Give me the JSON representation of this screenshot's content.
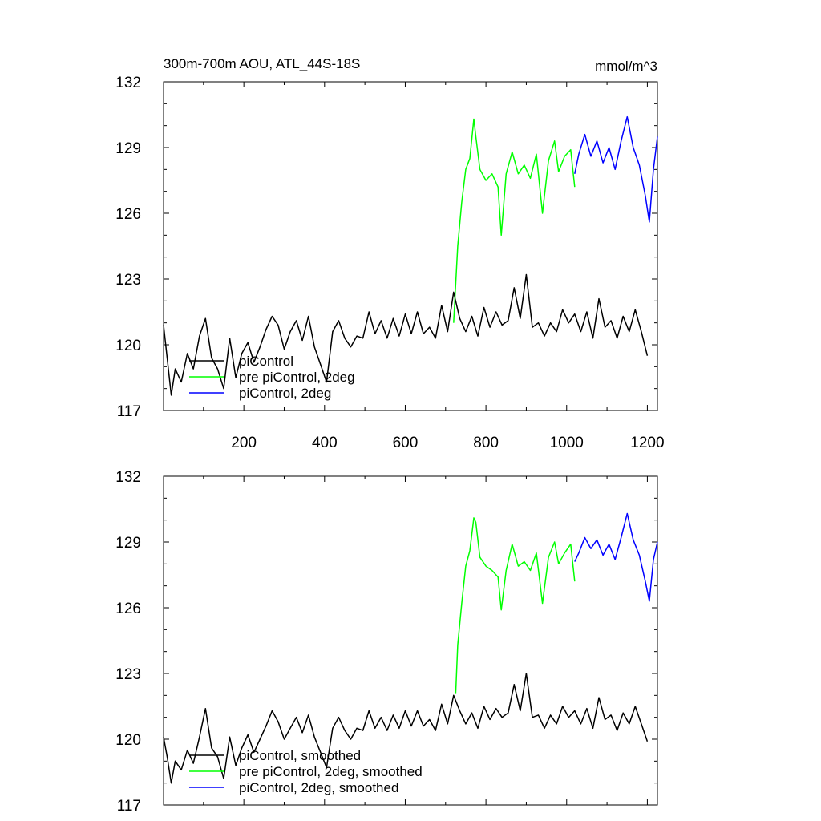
{
  "figure": {
    "title": "300m-700m AOU, ATL_44S-18S",
    "units": "mmol/m^3"
  },
  "chart_data": [
    {
      "type": "line",
      "title": "300m-700m AOU, ATL_44S-18S",
      "units": "mmol/m^3",
      "xlim": [
        1,
        1225
      ],
      "ylim": [
        117,
        132
      ],
      "xticks": [
        200,
        400,
        600,
        800,
        1000,
        1200
      ],
      "yticks": [
        117,
        120,
        123,
        126,
        129,
        132
      ],
      "legend_position": "lower-left",
      "series": [
        {
          "name": "piControl",
          "color": "#000000",
          "x": [
            1,
            10,
            20,
            30,
            45,
            60,
            75,
            90,
            105,
            120,
            135,
            150,
            165,
            180,
            195,
            210,
            225,
            240,
            255,
            270,
            285,
            300,
            315,
            330,
            345,
            360,
            375,
            390,
            405,
            420,
            435,
            450,
            465,
            480,
            495,
            510,
            525,
            540,
            555,
            570,
            585,
            600,
            615,
            630,
            645,
            660,
            675,
            690,
            705,
            720,
            735,
            750,
            765,
            780,
            795,
            810,
            825,
            840,
            855,
            870,
            885,
            900,
            915,
            930,
            945,
            960,
            975,
            990,
            1005,
            1020,
            1035,
            1050,
            1065,
            1080,
            1095,
            1110,
            1125,
            1140,
            1155,
            1170,
            1185,
            1200
          ],
          "values": [
            120.9,
            119.4,
            117.7,
            118.9,
            118.3,
            119.6,
            118.9,
            120.4,
            121.2,
            119.4,
            118.9,
            118.0,
            120.3,
            118.5,
            119.6,
            120.1,
            119.2,
            119.9,
            120.7,
            121.3,
            120.9,
            119.8,
            120.6,
            121.1,
            120.2,
            121.3,
            119.9,
            119.1,
            118.3,
            120.6,
            121.1,
            120.3,
            119.9,
            120.4,
            120.3,
            121.5,
            120.5,
            121.1,
            120.3,
            121.2,
            120.4,
            121.4,
            120.5,
            121.5,
            120.5,
            120.8,
            120.3,
            121.8,
            120.6,
            122.4,
            121.2,
            120.6,
            121.3,
            120.4,
            121.7,
            120.8,
            121.5,
            120.9,
            121.1,
            122.6,
            121.2,
            123.2,
            120.8,
            121.0,
            120.4,
            121.0,
            120.6,
            121.6,
            121.0,
            121.4,
            120.6,
            121.5,
            120.3,
            122.1,
            120.8,
            121.1,
            120.3,
            121.3,
            120.6,
            121.6,
            120.6,
            119.5
          ]
        },
        {
          "name": "pre piControl, 2deg",
          "color": "#00ff00",
          "x": [
            720,
            730,
            740,
            750,
            760,
            770,
            775,
            785,
            800,
            815,
            830,
            838,
            850,
            865,
            880,
            895,
            910,
            925,
            940,
            955,
            970,
            980,
            995,
            1010,
            1020
          ],
          "values": [
            121.0,
            124.5,
            126.5,
            128.0,
            128.5,
            130.3,
            129.5,
            128.0,
            127.5,
            127.8,
            127.2,
            125.0,
            127.8,
            128.8,
            127.8,
            128.2,
            127.6,
            128.7,
            126.0,
            128.4,
            129.3,
            127.9,
            128.6,
            128.9,
            127.2
          ]
        },
        {
          "name": "piControl, 2deg",
          "color": "#0000ff",
          "x": [
            1020,
            1030,
            1045,
            1060,
            1075,
            1090,
            1105,
            1120,
            1135,
            1150,
            1165,
            1180,
            1195,
            1205,
            1215,
            1225
          ],
          "values": [
            127.8,
            128.7,
            129.6,
            128.6,
            129.3,
            128.3,
            129.0,
            128.0,
            129.3,
            130.4,
            129.0,
            128.2,
            126.8,
            125.6,
            128.0,
            129.5
          ]
        }
      ]
    },
    {
      "type": "line",
      "xlim": [
        1,
        1225
      ],
      "ylim": [
        117,
        132
      ],
      "xticks": [
        200,
        400,
        600,
        800,
        1000,
        1200
      ],
      "yticks": [
        117,
        120,
        123,
        126,
        129,
        132
      ],
      "legend_position": "lower-left",
      "series": [
        {
          "name": "piControl, smoothed",
          "color": "#000000",
          "x": [
            1,
            10,
            20,
            30,
            45,
            60,
            75,
            90,
            105,
            120,
            135,
            150,
            165,
            180,
            195,
            210,
            225,
            240,
            255,
            270,
            285,
            300,
            315,
            330,
            345,
            360,
            375,
            390,
            405,
            420,
            435,
            450,
            465,
            480,
            495,
            510,
            525,
            540,
            555,
            570,
            585,
            600,
            615,
            630,
            645,
            660,
            675,
            690,
            705,
            720,
            735,
            750,
            765,
            780,
            795,
            810,
            825,
            840,
            855,
            870,
            885,
            900,
            915,
            930,
            945,
            960,
            975,
            990,
            1005,
            1020,
            1035,
            1050,
            1065,
            1080,
            1095,
            1110,
            1125,
            1140,
            1155,
            1170,
            1185,
            1200
          ],
          "values": [
            120.1,
            119.2,
            118.0,
            119.0,
            118.6,
            119.5,
            118.9,
            120.1,
            121.4,
            119.6,
            119.2,
            118.2,
            120.1,
            118.8,
            119.6,
            120.2,
            119.4,
            120.0,
            120.6,
            121.3,
            120.8,
            120.0,
            120.5,
            121.0,
            120.3,
            121.1,
            120.1,
            119.4,
            118.7,
            120.5,
            121.0,
            120.4,
            120.0,
            120.5,
            120.4,
            121.3,
            120.5,
            121.0,
            120.4,
            121.1,
            120.5,
            121.3,
            120.6,
            121.3,
            120.6,
            120.9,
            120.4,
            121.6,
            120.7,
            122.0,
            121.3,
            120.7,
            121.2,
            120.5,
            121.5,
            120.9,
            121.4,
            121.0,
            121.2,
            122.5,
            121.3,
            123.0,
            121.0,
            121.1,
            120.5,
            121.1,
            120.7,
            121.5,
            121.0,
            121.3,
            120.7,
            121.4,
            120.5,
            121.9,
            120.9,
            121.1,
            120.4,
            121.2,
            120.7,
            121.5,
            120.7,
            119.9
          ]
        },
        {
          "name": "pre piControl, 2deg, smoothed",
          "color": "#00ff00",
          "x": [
            725,
            730,
            740,
            750,
            760,
            770,
            775,
            785,
            800,
            815,
            830,
            838,
            850,
            865,
            880,
            895,
            910,
            925,
            940,
            955,
            970,
            980,
            995,
            1010,
            1020
          ],
          "values": [
            122.1,
            124.3,
            126.2,
            127.9,
            128.6,
            130.1,
            129.9,
            128.3,
            127.9,
            127.7,
            127.4,
            125.9,
            127.7,
            128.9,
            127.9,
            128.1,
            127.7,
            128.5,
            126.2,
            128.3,
            129.0,
            128.0,
            128.5,
            128.9,
            127.2
          ]
        },
        {
          "name": "piControl, 2deg, smoothed",
          "color": "#0000ff",
          "x": [
            1020,
            1030,
            1045,
            1060,
            1075,
            1090,
            1105,
            1120,
            1135,
            1150,
            1165,
            1180,
            1195,
            1205,
            1215,
            1225
          ],
          "values": [
            128.1,
            128.5,
            129.2,
            128.7,
            129.1,
            128.4,
            128.9,
            128.2,
            129.2,
            130.3,
            129.1,
            128.4,
            127.2,
            126.3,
            128.2,
            129.0
          ]
        }
      ]
    }
  ]
}
